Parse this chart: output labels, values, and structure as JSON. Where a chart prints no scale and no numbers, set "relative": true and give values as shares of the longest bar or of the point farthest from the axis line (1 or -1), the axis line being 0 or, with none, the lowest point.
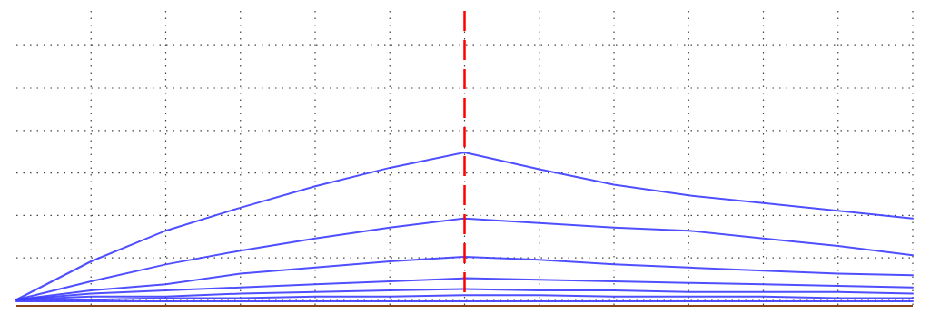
{
  "chart_data": {
    "type": "line",
    "relative": true,
    "categories": [
      null,
      null,
      null,
      null,
      null,
      null,
      null,
      null,
      null,
      null,
      null,
      null,
      null
    ],
    "grid": true,
    "marker": "none",
    "line_style": "solid",
    "series": [
      {
        "color": "#3c3cff",
        "values": [
          0.04,
          0.29,
          0.49,
          0.64,
          0.78,
          0.9,
          1.0,
          0.89,
          0.79,
          0.72,
          0.67,
          0.62,
          0.57
        ]
      },
      {
        "color": "#3c3cff",
        "values": [
          0.04,
          0.16,
          0.27,
          0.36,
          0.44,
          0.51,
          0.57,
          0.54,
          0.51,
          0.49,
          0.44,
          0.39,
          0.33
        ]
      },
      {
        "color": "#3c3cff",
        "values": [
          0.04,
          0.1,
          0.14,
          0.21,
          0.25,
          0.29,
          0.32,
          0.3,
          0.27,
          0.25,
          0.23,
          0.21,
          0.2
        ]
      },
      {
        "color": "#3c3cff",
        "values": [
          0.04,
          0.08,
          0.1,
          0.12,
          0.14,
          0.16,
          0.18,
          0.17,
          0.16,
          0.15,
          0.14,
          0.13,
          0.12
        ]
      },
      {
        "color": "#3c3cff",
        "values": [
          0.04,
          0.06,
          0.06,
          0.08,
          0.09,
          0.1,
          0.11,
          0.1,
          0.1,
          0.09,
          0.09,
          0.09,
          0.08
        ]
      },
      {
        "color": "#3c3cff",
        "values": [
          0.04,
          0.04,
          0.05,
          0.05,
          0.06,
          0.06,
          0.07,
          0.07,
          0.06,
          0.06,
          0.06,
          0.05,
          0.05
        ]
      },
      {
        "color": "#3c3cff",
        "values": [
          0.03,
          0.03,
          0.03,
          0.03,
          0.03,
          0.03,
          0.03,
          0.03,
          0.03,
          0.03,
          0.03,
          0.03,
          0.03
        ]
      }
    ]
  }
}
